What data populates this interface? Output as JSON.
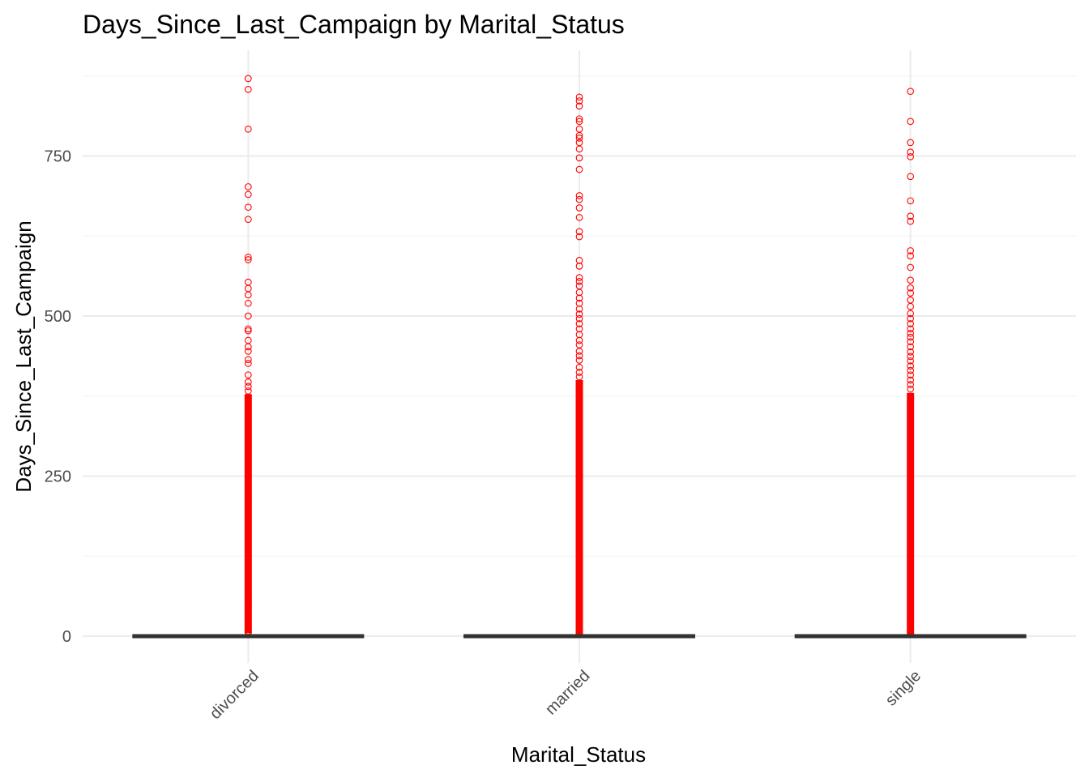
{
  "chart_data": {
    "type": "boxplot",
    "title": "Days_Since_Last_Campaign by Marital_Status",
    "xlabel": "Marital_Status",
    "ylabel": "Days_Since_Last_Campaign",
    "categories": [
      "divorced",
      "married",
      "single"
    ],
    "ylim": [
      -35,
      875
    ],
    "yticks": [
      0,
      250,
      500,
      750
    ],
    "grid": true,
    "outlier_color": "#FF0000",
    "box_color": "#333333",
    "series": [
      {
        "category": "divorced",
        "q1": 0,
        "median": 0,
        "q3": 0,
        "dense_outlier_range": [
          5,
          378
        ],
        "outliers": [
          871,
          854,
          792,
          702,
          690,
          670,
          651,
          592,
          588,
          553,
          543,
          533,
          520,
          500,
          480,
          477,
          462,
          452,
          445,
          432,
          426,
          408,
          397,
          390,
          383,
          306,
          300,
          215,
          208,
          69,
          63,
          58,
          52,
          45,
          38,
          28,
          18,
          8,
          5
        ]
      },
      {
        "category": "married",
        "q1": 0,
        "median": 0,
        "q3": 0,
        "dense_outlier_range": [
          2,
          400
        ],
        "outliers": [
          842,
          836,
          828,
          808,
          804,
          792,
          782,
          778,
          771,
          761,
          747,
          729,
          688,
          682,
          669,
          654,
          632,
          624,
          587,
          578,
          560,
          554,
          547,
          537,
          528,
          520,
          511,
          503,
          496,
          488,
          480,
          471,
          462,
          455,
          445,
          438,
          431,
          420,
          412,
          405,
          36,
          30,
          22
        ]
      },
      {
        "category": "single",
        "q1": 0,
        "median": 0,
        "q3": 0,
        "dense_outlier_range": [
          2,
          380
        ],
        "outliers": [
          851,
          804,
          771,
          756,
          749,
          718,
          680,
          656,
          648,
          602,
          594,
          576,
          556,
          544,
          536,
          525,
          515,
          504,
          496,
          488,
          480,
          473,
          467,
          460,
          452,
          444,
          437,
          430,
          422,
          415,
          408,
          400,
          393,
          386,
          56,
          48,
          40,
          30,
          22,
          12
        ]
      }
    ]
  }
}
